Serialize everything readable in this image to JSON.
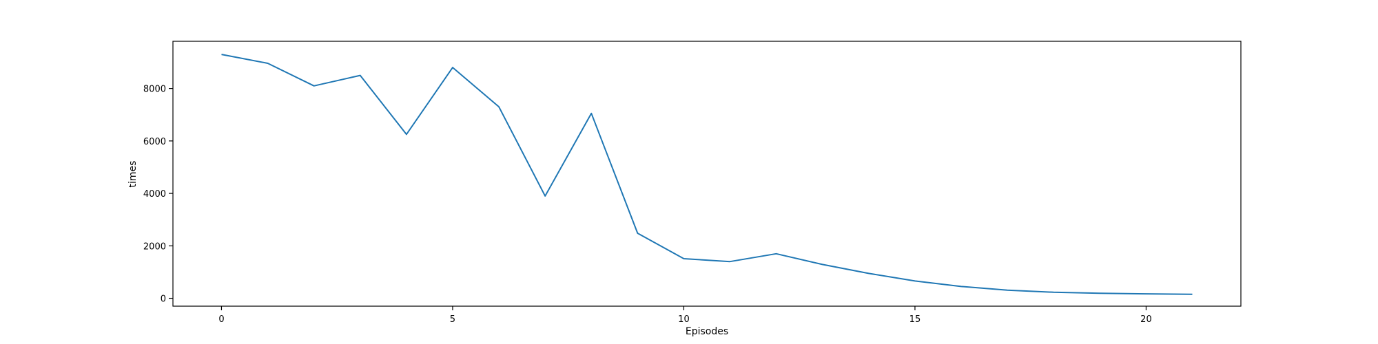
{
  "chart_data": {
    "type": "line",
    "title": "",
    "xlabel": "Episodes",
    "ylabel": "times",
    "xlim": [
      -1.05,
      22.05
    ],
    "ylim": [
      -300,
      9800
    ],
    "xticks": [
      0,
      5,
      10,
      15,
      20
    ],
    "yticks": [
      0,
      2000,
      4000,
      6000,
      8000
    ],
    "grid": false,
    "legend": "none",
    "line_color": "#1f77b4",
    "series": [
      {
        "x": [
          0,
          1,
          2,
          3,
          4,
          5,
          6,
          7,
          8,
          9,
          10,
          11,
          12,
          13,
          14,
          15,
          16,
          17,
          18,
          19,
          20,
          21
        ],
        "values": [
          9300,
          8960,
          8100,
          8500,
          6250,
          8800,
          7300,
          3900,
          7050,
          2480,
          1510,
          1400,
          1700,
          1290,
          950,
          660,
          450,
          310,
          230,
          190,
          170,
          150
        ]
      }
    ]
  }
}
